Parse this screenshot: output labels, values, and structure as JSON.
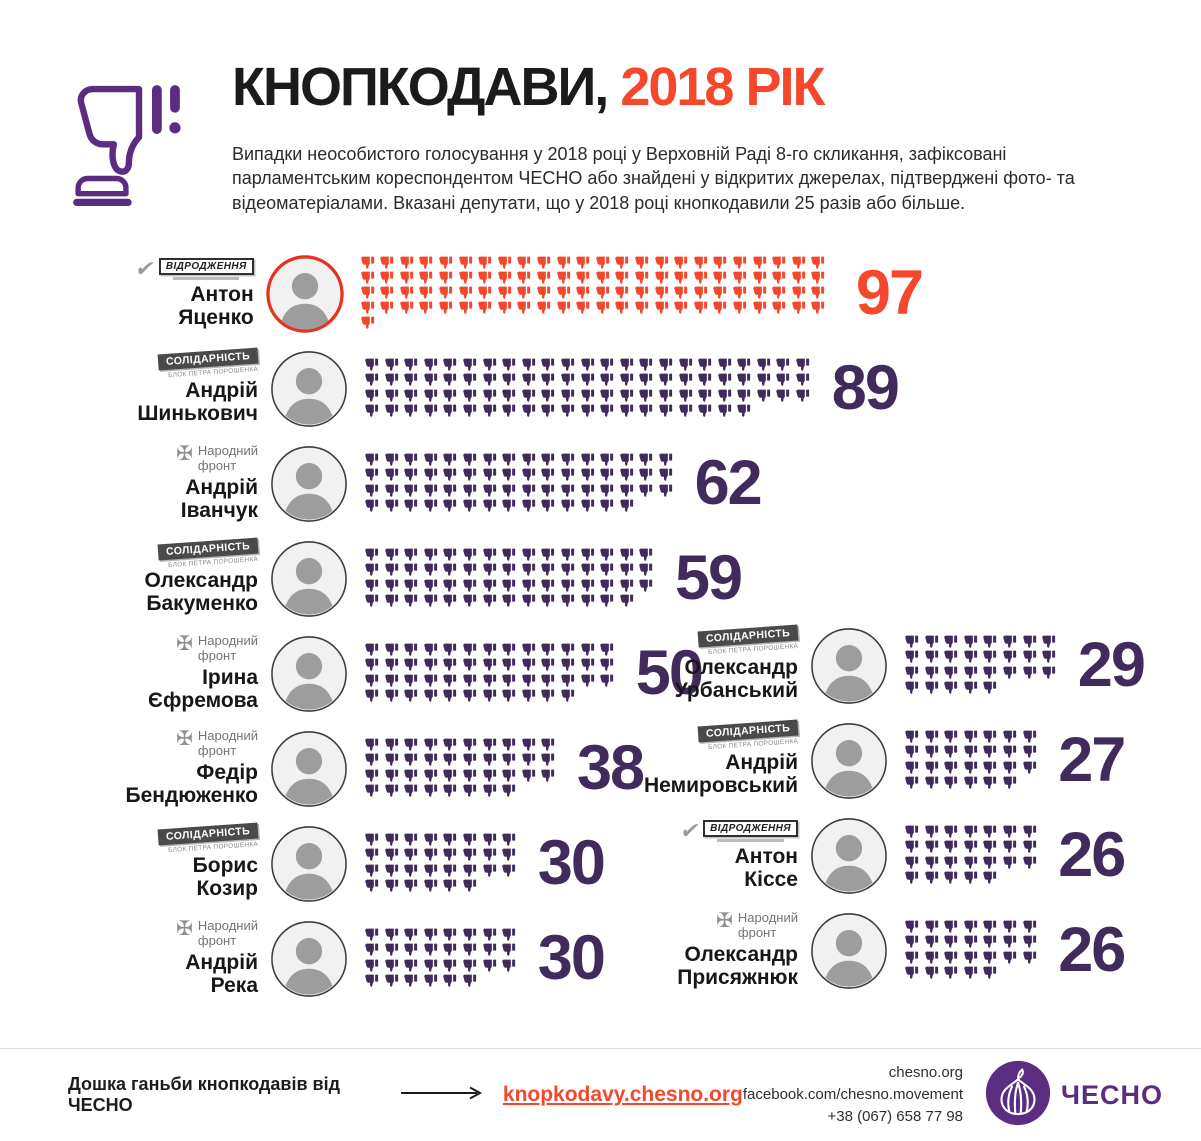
{
  "header": {
    "title_black": "КНОПКОДАВИ,",
    "title_red": "2018 РІК",
    "description": "Випадки неособистого голосування у 2018 році у Верховній Раді 8-го скликання, зафіксовані парламентським кореспондентом ЧЕСНО або знайдені у відкритих джерелах, підтверджені фото- та відеоматеріалами. Вказані депутати, що у 2018 році кнопкодавили 25 разів або більше."
  },
  "icons": {
    "header_icon": "thumbs-down-pressing-button",
    "unit_icon": "thumb-down",
    "logo_icon": "garlic"
  },
  "palette": {
    "accent_red": "#f4472b",
    "icon_purple": "#412a5c",
    "brand_purple": "#5b2d80",
    "text": "#1b1b1b",
    "badge_gray": "#4a4a4a"
  },
  "parties": {
    "solidarnist": {
      "label": "СОЛІДАРНІСТЬ",
      "sublabel": "БЛОК ПЕТРА ПОРОШЕНКА"
    },
    "vidrodzhennia": {
      "label": "ВІДРОДЖЕННЯ",
      "check_glyph": "✔"
    },
    "narodnyi_front": {
      "label_line1": "Народний",
      "label_line2": "фронт",
      "emblem_glyph": "✠"
    }
  },
  "deputies_left": [
    {
      "name": "Антон Яценко",
      "party": "vidrodzhennia",
      "count": 97,
      "highlight": true
    },
    {
      "name": "Андрій Шинькович",
      "party": "solidarnist",
      "count": 89
    },
    {
      "name": "Андрій Іванчук",
      "party": "narodnyi_front",
      "count": 62
    },
    {
      "name": "Олександр Бакуменко",
      "party": "solidarnist",
      "count": 59
    },
    {
      "name": "Ірина Єфремова",
      "party": "narodnyi_front",
      "count": 50
    },
    {
      "name": "Федір Бендюженко",
      "party": "narodnyi_front",
      "count": 38
    },
    {
      "name": "Борис Козир",
      "party": "solidarnist",
      "count": 30
    },
    {
      "name": "Андрій Река",
      "party": "narodnyi_front",
      "count": 30
    }
  ],
  "deputies_right": [
    {
      "name": "Олександр Урбанський",
      "party": "solidarnist",
      "count": 29
    },
    {
      "name": "Андрій Немировський",
      "party": "solidarnist",
      "count": 27
    },
    {
      "name": "Антон Кіссе",
      "party": "vidrodzhennia",
      "count": 26
    },
    {
      "name": "Олександр Присяжнюк",
      "party": "narodnyi_front",
      "count": 26
    }
  ],
  "chart_data": {
    "type": "bar",
    "subtype": "pictogram",
    "title": "КНОПКОДАВИ, 2018 РІК",
    "subtitle": "Випадки неособистого голосування у 2018 році у Верховній Раді 8-го скликання, зафіксовані парламентським кореспондентом ЧЕСНО або знайдені у відкритих джерелах, підтверджені фото- та відеоматеріалами. Вказані депутати, що у 2018 році кнопкодавили 25 разів або більше.",
    "categories": [
      "Антон Яценко",
      "Андрій Шинькович",
      "Андрій Іванчук",
      "Олександр Бакуменко",
      "Ірина Єфремова",
      "Федір Бендюженко",
      "Борис Козир",
      "Андрій Река",
      "Олександр Урбанський",
      "Андрій Немировський",
      "Антон Кіссе",
      "Олександр Присяжнюк"
    ],
    "values": [
      97,
      89,
      62,
      59,
      50,
      38,
      30,
      30,
      29,
      27,
      26,
      26
    ],
    "parties": [
      "ВІДРОДЖЕННЯ",
      "СОЛІДАРНІСТЬ БЛОК ПЕТРА ПОРОШЕНКА",
      "Народний фронт",
      "СОЛІДАРНІСТЬ БЛОК ПЕТРА ПОРОШЕНКА",
      "Народний фронт",
      "Народний фронт",
      "СОЛІДАРНІСТЬ БЛОК ПЕТРА ПОРОШЕНКА",
      "Народний фронт",
      "СОЛІДАРНІСТЬ БЛОК ПЕТРА ПОРОШЕНКА",
      "СОЛІДАРНІСТЬ БЛОК ПЕТРА ПОРОШЕНКА",
      "ВІДРОДЖЕННЯ",
      "Народний фронт"
    ],
    "layout": "one thumb-down glyph per case, wrapped into 4 rows per deputy; top offender highlighted in red, others purple; two columns"
  },
  "footer": {
    "board_text": "Дошка ганьби кнопкодавів від ЧЕСНО",
    "link": "knopkodavy.chesno.org",
    "contacts": [
      "chesno.org",
      "facebook.com/chesno.movement",
      "+38 (067) 658 77 98"
    ],
    "logo_text": "ЧЕСНО"
  }
}
